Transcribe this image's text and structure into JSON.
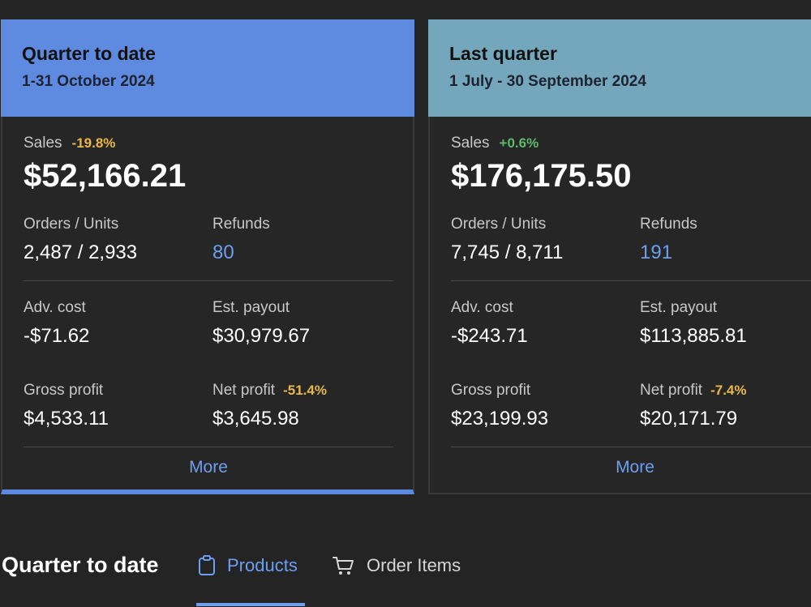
{
  "cards": [
    {
      "title": "Quarter to date",
      "range": "1-31 October 2024",
      "sales_label": "Sales",
      "sales_change": "-19.8%",
      "sales_value": "$52,166.21",
      "orders_label": "Orders / Units",
      "orders_value": "2,487 / 2,933",
      "refunds_label": "Refunds",
      "refunds_value": "80",
      "adv_label": "Adv. cost",
      "adv_value": "-$71.62",
      "payout_label": "Est. payout",
      "payout_value": "$30,979.67",
      "gross_label": "Gross profit",
      "gross_value": "$4,533.11",
      "net_label": "Net profit",
      "net_change": "-51.4%",
      "net_value": "$3,645.98",
      "more_label": "More"
    },
    {
      "title": "Last quarter",
      "range": "1 July - 30 September 2024",
      "sales_label": "Sales",
      "sales_change": "+0.6%",
      "sales_value": "$176,175.50",
      "orders_label": "Orders / Units",
      "orders_value": "7,745 / 8,711",
      "refunds_label": "Refunds",
      "refunds_value": "191",
      "adv_label": "Adv. cost",
      "adv_value": "-$243.71",
      "payout_label": "Est. payout",
      "payout_value": "$113,885.81",
      "gross_label": "Gross profit",
      "gross_value": "$23,199.93",
      "net_label": "Net profit",
      "net_change": "-7.4%",
      "net_value": "$20,171.79",
      "more_label": "More"
    }
  ],
  "bottom": {
    "title": "Quarter to date",
    "tabs": [
      {
        "label": "Products",
        "icon": "clipboard-icon",
        "active": true
      },
      {
        "label": "Order Items",
        "icon": "cart-icon",
        "active": false
      }
    ]
  },
  "colors": {
    "current_header": "#5e8ae0",
    "last_header": "#75a7bc",
    "negative": "#e8b84a",
    "positive": "#5fb86a",
    "link": "#6e9ef0"
  }
}
